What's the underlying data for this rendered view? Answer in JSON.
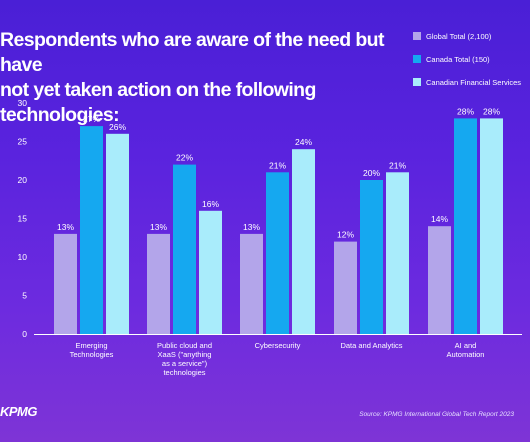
{
  "title": "Respondents who are aware of the need but have\nnot yet taken action on the following technologies:",
  "legend": [
    {
      "label": "Global Total (2,100)",
      "color": "#b3a5ea"
    },
    {
      "label": "Canada Total (150)",
      "color": "#15a8f0"
    },
    {
      "label": "Canadian Financial Services",
      "color": "#a9ecfb"
    }
  ],
  "source": "Source: KPMG International Global Tech Report 2023",
  "logo": "KPMG",
  "chart_data": {
    "type": "bar",
    "categories": [
      [
        "Emerging",
        "Technologies"
      ],
      [
        "Public cloud and",
        "XaaS (\"anything",
        "as a service\")",
        "technologies"
      ],
      [
        "Cybersecurity"
      ],
      [
        "Data and Analytics"
      ],
      [
        "AI and",
        "Automation"
      ]
    ],
    "series": [
      {
        "name": "Global Total (2,100)",
        "values": [
          13,
          13,
          13,
          12,
          14
        ],
        "labels": [
          "13%",
          "13%",
          "13%",
          "12%",
          "14%"
        ],
        "color": "#b3a5ea"
      },
      {
        "name": "Canada Total (150)",
        "values": [
          27,
          22,
          21,
          20,
          28
        ],
        "labels": [
          "27%",
          "22%",
          "21%",
          "20%",
          "28%"
        ],
        "color": "#15a8f0"
      },
      {
        "name": "Canadian Financial Services",
        "values": [
          26,
          16,
          24,
          21,
          28
        ],
        "labels": [
          "26%",
          "16%",
          "24%",
          "21%",
          "28%"
        ],
        "color": "#a9ecfb"
      }
    ],
    "yticks": [
      0,
      5,
      10,
      15,
      20,
      25,
      30
    ],
    "ylim": [
      0,
      30
    ],
    "legend_position": "top-right",
    "grid": false
  }
}
